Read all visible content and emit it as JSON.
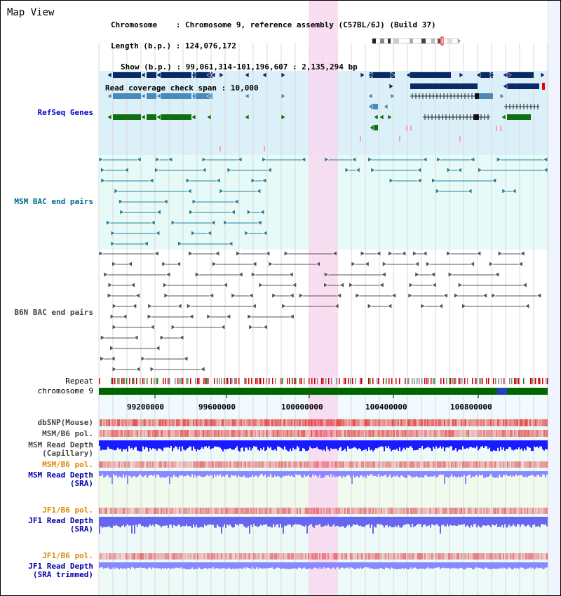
{
  "header": {
    "title": "Map View",
    "chromosome_label": "Chromosome",
    "chromosome_value": "Chromosome 9, reference assembly (C57BL/6J) (Build 37)",
    "length_label": "Length (b.p.)",
    "length_value": "124,076,172",
    "show_label": "Show (b.p.)",
    "show_value": "99,061,314-101,196,607 : 2,135,294 bp",
    "span_label": "Read coverage check span",
    "span_value": "10,000"
  },
  "tracks": {
    "refseq": "RefSeq Genes",
    "msm_bac": "MSM BAC end pairs",
    "b6n_bac": "B6N BAC end pairs",
    "repeat": "Repeat",
    "chromosome": "chromosome 9",
    "dbsnp": "dbSNP(Mouse)",
    "msm_b6_pol": "MSM/B6 pol.",
    "msm_read_depth_cap_1": "MSM Read Depth",
    "msm_read_depth_cap_2": "(Capillary)",
    "msm_b6_pol_sra": "MSM/B6 pol.",
    "msm_read_depth_sra_1": "MSM Read Depth",
    "msm_read_depth_sra_2": "(SRA)",
    "jf1_b6_pol": "JF1/B6 pol.",
    "jf1_read_depth_1": "JF1 Read Depth",
    "jf1_read_depth_2": "(SRA)",
    "jf1_b6_pol_trim": "JF1/B6 pol.",
    "jf1_read_depth_trim_1": "JF1 Read Depth",
    "jf1_read_depth_trim_2": "(SRA trimmed)"
  },
  "axis": {
    "ticks": [
      "99200000",
      "99600000",
      "100000000",
      "100400000",
      "100800000"
    ]
  },
  "colors": {
    "refseq_bg": "#dcf0fa",
    "bac_bg": "#e6faf8",
    "highlight": "#f8d8f0",
    "refseq_label": "#0000cc",
    "msm_label": "#006688",
    "b6n_label": "#444444",
    "pol_sra_label": "#dd8800",
    "read_depth_label": "#0000aa",
    "gene_navy": "#0a2a66",
    "gene_blue": "#4a8ab8",
    "gene_green": "#107010",
    "chromosome_bar": "#006600"
  }
}
